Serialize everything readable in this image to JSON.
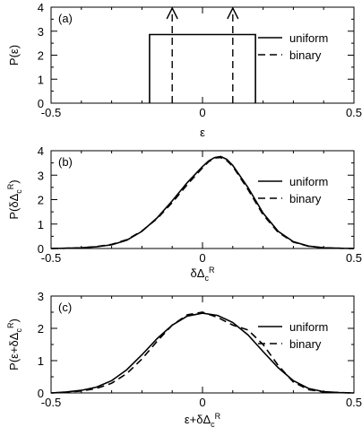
{
  "chart_data": [
    {
      "type": "line",
      "panel_label": "(a)",
      "xlabel": "ε",
      "ylabel": "P(ε)",
      "xlim": [
        -0.5,
        0.5
      ],
      "ylim": [
        0,
        4
      ],
      "xticks": [
        -0.5,
        0,
        0.5
      ],
      "xtick_labels": [
        "-0.5",
        "0",
        "0.5"
      ],
      "yticks": [
        0,
        1,
        2,
        3,
        4
      ],
      "ytick_labels": [
        "0",
        "1",
        "2",
        "3",
        "4"
      ],
      "legend_position": "top-right",
      "series": [
        {
          "name": "uniform",
          "style": "solid",
          "x": [
            -0.175,
            -0.175,
            0.175,
            0.175
          ],
          "y": [
            0,
            2.86,
            2.86,
            0
          ]
        },
        {
          "name": "binary",
          "style": "dashed",
          "delta_arrows": true,
          "x": [
            -0.1,
            0.1
          ],
          "y": [
            4,
            4
          ]
        }
      ]
    },
    {
      "type": "line",
      "panel_label": "(b)",
      "xlabel": "δΔcR",
      "ylabel": "P(δΔcR)",
      "xlim": [
        -0.5,
        0.5
      ],
      "ylim": [
        0,
        4
      ],
      "xticks": [
        -0.5,
        0,
        0.5
      ],
      "xtick_labels": [
        "-0.5",
        "0",
        "0.5"
      ],
      "yticks": [
        0,
        1,
        2,
        3,
        4
      ],
      "ytick_labels": [
        "0",
        "1",
        "2",
        "3",
        "4"
      ],
      "legend_position": "top-right",
      "series": [
        {
          "name": "uniform",
          "style": "solid",
          "x": [
            -0.5,
            -0.45,
            -0.4,
            -0.35,
            -0.3,
            -0.25,
            -0.2,
            -0.15,
            -0.1,
            -0.05,
            0,
            0.02,
            0.04,
            0.06,
            0.08,
            0.1,
            0.15,
            0.2,
            0.25,
            0.3,
            0.35,
            0.4,
            0.45,
            0.5
          ],
          "y": [
            0.0,
            0.01,
            0.03,
            0.07,
            0.15,
            0.34,
            0.7,
            1.25,
            1.95,
            2.7,
            3.35,
            3.58,
            3.72,
            3.76,
            3.65,
            3.4,
            2.5,
            1.45,
            0.7,
            0.28,
            0.1,
            0.03,
            0.01,
            0.0
          ]
        },
        {
          "name": "binary",
          "style": "dashed",
          "x": [
            -0.5,
            -0.45,
            -0.4,
            -0.35,
            -0.3,
            -0.25,
            -0.2,
            -0.15,
            -0.1,
            -0.05,
            0,
            0.02,
            0.04,
            0.06,
            0.08,
            0.1,
            0.15,
            0.2,
            0.25,
            0.3,
            0.35,
            0.4,
            0.45,
            0.5
          ],
          "y": [
            0.0,
            0.01,
            0.03,
            0.08,
            0.17,
            0.36,
            0.72,
            1.22,
            1.88,
            2.62,
            3.3,
            3.55,
            3.7,
            3.72,
            3.6,
            3.36,
            2.42,
            1.38,
            0.66,
            0.26,
            0.09,
            0.03,
            0.01,
            0.0
          ]
        }
      ]
    },
    {
      "type": "line",
      "panel_label": "(c)",
      "xlabel": "ε+δΔcR",
      "ylabel": "P(ε+δΔcR)",
      "xlim": [
        -0.5,
        0.5
      ],
      "ylim": [
        0,
        3
      ],
      "xticks": [
        -0.5,
        0,
        0.5
      ],
      "xtick_labels": [
        "-0.5",
        "0",
        "0.5"
      ],
      "yticks": [
        0,
        1,
        2,
        3
      ],
      "ytick_labels": [
        "0",
        "1",
        "2",
        "3"
      ],
      "legend_position": "top-right",
      "series": [
        {
          "name": "uniform",
          "style": "solid",
          "x": [
            -0.5,
            -0.45,
            -0.4,
            -0.35,
            -0.3,
            -0.25,
            -0.2,
            -0.15,
            -0.1,
            -0.05,
            0,
            0.05,
            0.1,
            0.15,
            0.2,
            0.25,
            0.3,
            0.35,
            0.4,
            0.45,
            0.5
          ],
          "y": [
            0.0,
            0.03,
            0.08,
            0.18,
            0.38,
            0.72,
            1.18,
            1.68,
            2.1,
            2.38,
            2.47,
            2.4,
            2.18,
            1.8,
            1.28,
            0.78,
            0.38,
            0.14,
            0.04,
            0.01,
            0.0
          ]
        },
        {
          "name": "binary",
          "style": "dashed",
          "x": [
            -0.5,
            -0.45,
            -0.4,
            -0.35,
            -0.3,
            -0.25,
            -0.2,
            -0.15,
            -0.1,
            -0.05,
            0,
            0.05,
            0.1,
            0.15,
            0.2,
            0.25,
            0.3,
            0.35,
            0.4,
            0.45,
            0.5
          ],
          "y": [
            0.0,
            0.02,
            0.06,
            0.14,
            0.3,
            0.6,
            1.05,
            1.6,
            2.1,
            2.42,
            2.5,
            2.34,
            2.1,
            1.95,
            1.5,
            0.85,
            0.34,
            0.1,
            0.03,
            0.01,
            0.0
          ]
        }
      ]
    }
  ]
}
